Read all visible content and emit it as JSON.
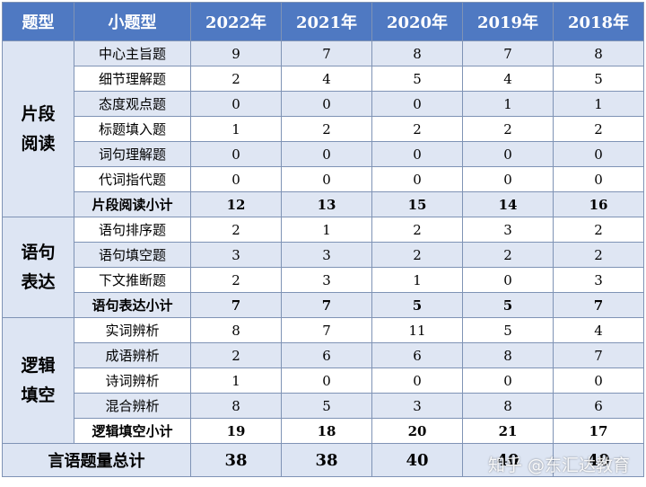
{
  "header": {
    "type_col": "题型",
    "subtype_col": "小题型",
    "years": [
      "2022年",
      "2021年",
      "2020年",
      "2019年",
      "2018年"
    ]
  },
  "groups": [
    {
      "label": "片段\n阅读",
      "rows": [
        {
          "name": "中心主旨题",
          "values": [
            "9",
            "7",
            "8",
            "7",
            "8"
          ]
        },
        {
          "name": "细节理解题",
          "values": [
            "2",
            "4",
            "5",
            "4",
            "5"
          ]
        },
        {
          "name": "态度观点题",
          "values": [
            "0",
            "0",
            "0",
            "1",
            "1"
          ]
        },
        {
          "name": "标题填入题",
          "values": [
            "1",
            "2",
            "2",
            "2",
            "2"
          ]
        },
        {
          "name": "词句理解题",
          "values": [
            "0",
            "0",
            "0",
            "0",
            "0"
          ]
        },
        {
          "name": "代词指代题",
          "values": [
            "0",
            "0",
            "0",
            "0",
            "0"
          ]
        }
      ],
      "subtotal": {
        "name": "片段阅读小计",
        "values": [
          "12",
          "13",
          "15",
          "14",
          "16"
        ]
      }
    },
    {
      "label": "语句\n表达",
      "rows": [
        {
          "name": "语句排序题",
          "values": [
            "2",
            "1",
            "2",
            "3",
            "2"
          ]
        },
        {
          "name": "语句填空题",
          "values": [
            "3",
            "3",
            "2",
            "2",
            "2"
          ]
        },
        {
          "name": "下文推断题",
          "values": [
            "2",
            "3",
            "1",
            "0",
            "3"
          ]
        }
      ],
      "subtotal": {
        "name": "语句表达小计",
        "values": [
          "7",
          "7",
          "5",
          "5",
          "7"
        ]
      }
    },
    {
      "label": "逻辑\n填空",
      "rows": [
        {
          "name": "实词辨析",
          "values": [
            "8",
            "7",
            "11",
            "5",
            "4"
          ]
        },
        {
          "name": "成语辨析",
          "values": [
            "2",
            "6",
            "6",
            "8",
            "7"
          ]
        },
        {
          "name": "诗词辨析",
          "values": [
            "1",
            "0",
            "0",
            "0",
            "0"
          ]
        },
        {
          "name": "混合辨析",
          "values": [
            "8",
            "5",
            "3",
            "8",
            "6"
          ]
        }
      ],
      "subtotal": {
        "name": "逻辑填空小计",
        "values": [
          "19",
          "18",
          "20",
          "21",
          "17"
        ]
      }
    }
  ],
  "total": {
    "name": "言语题量总计",
    "values": [
      "38",
      "38",
      "40",
      "40",
      "40"
    ]
  },
  "watermark": "知乎 @东汇达教育",
  "colors": {
    "header_bg": "#4f79c2",
    "band_bg": "#dfe6f3",
    "border": "#7f93b5"
  }
}
